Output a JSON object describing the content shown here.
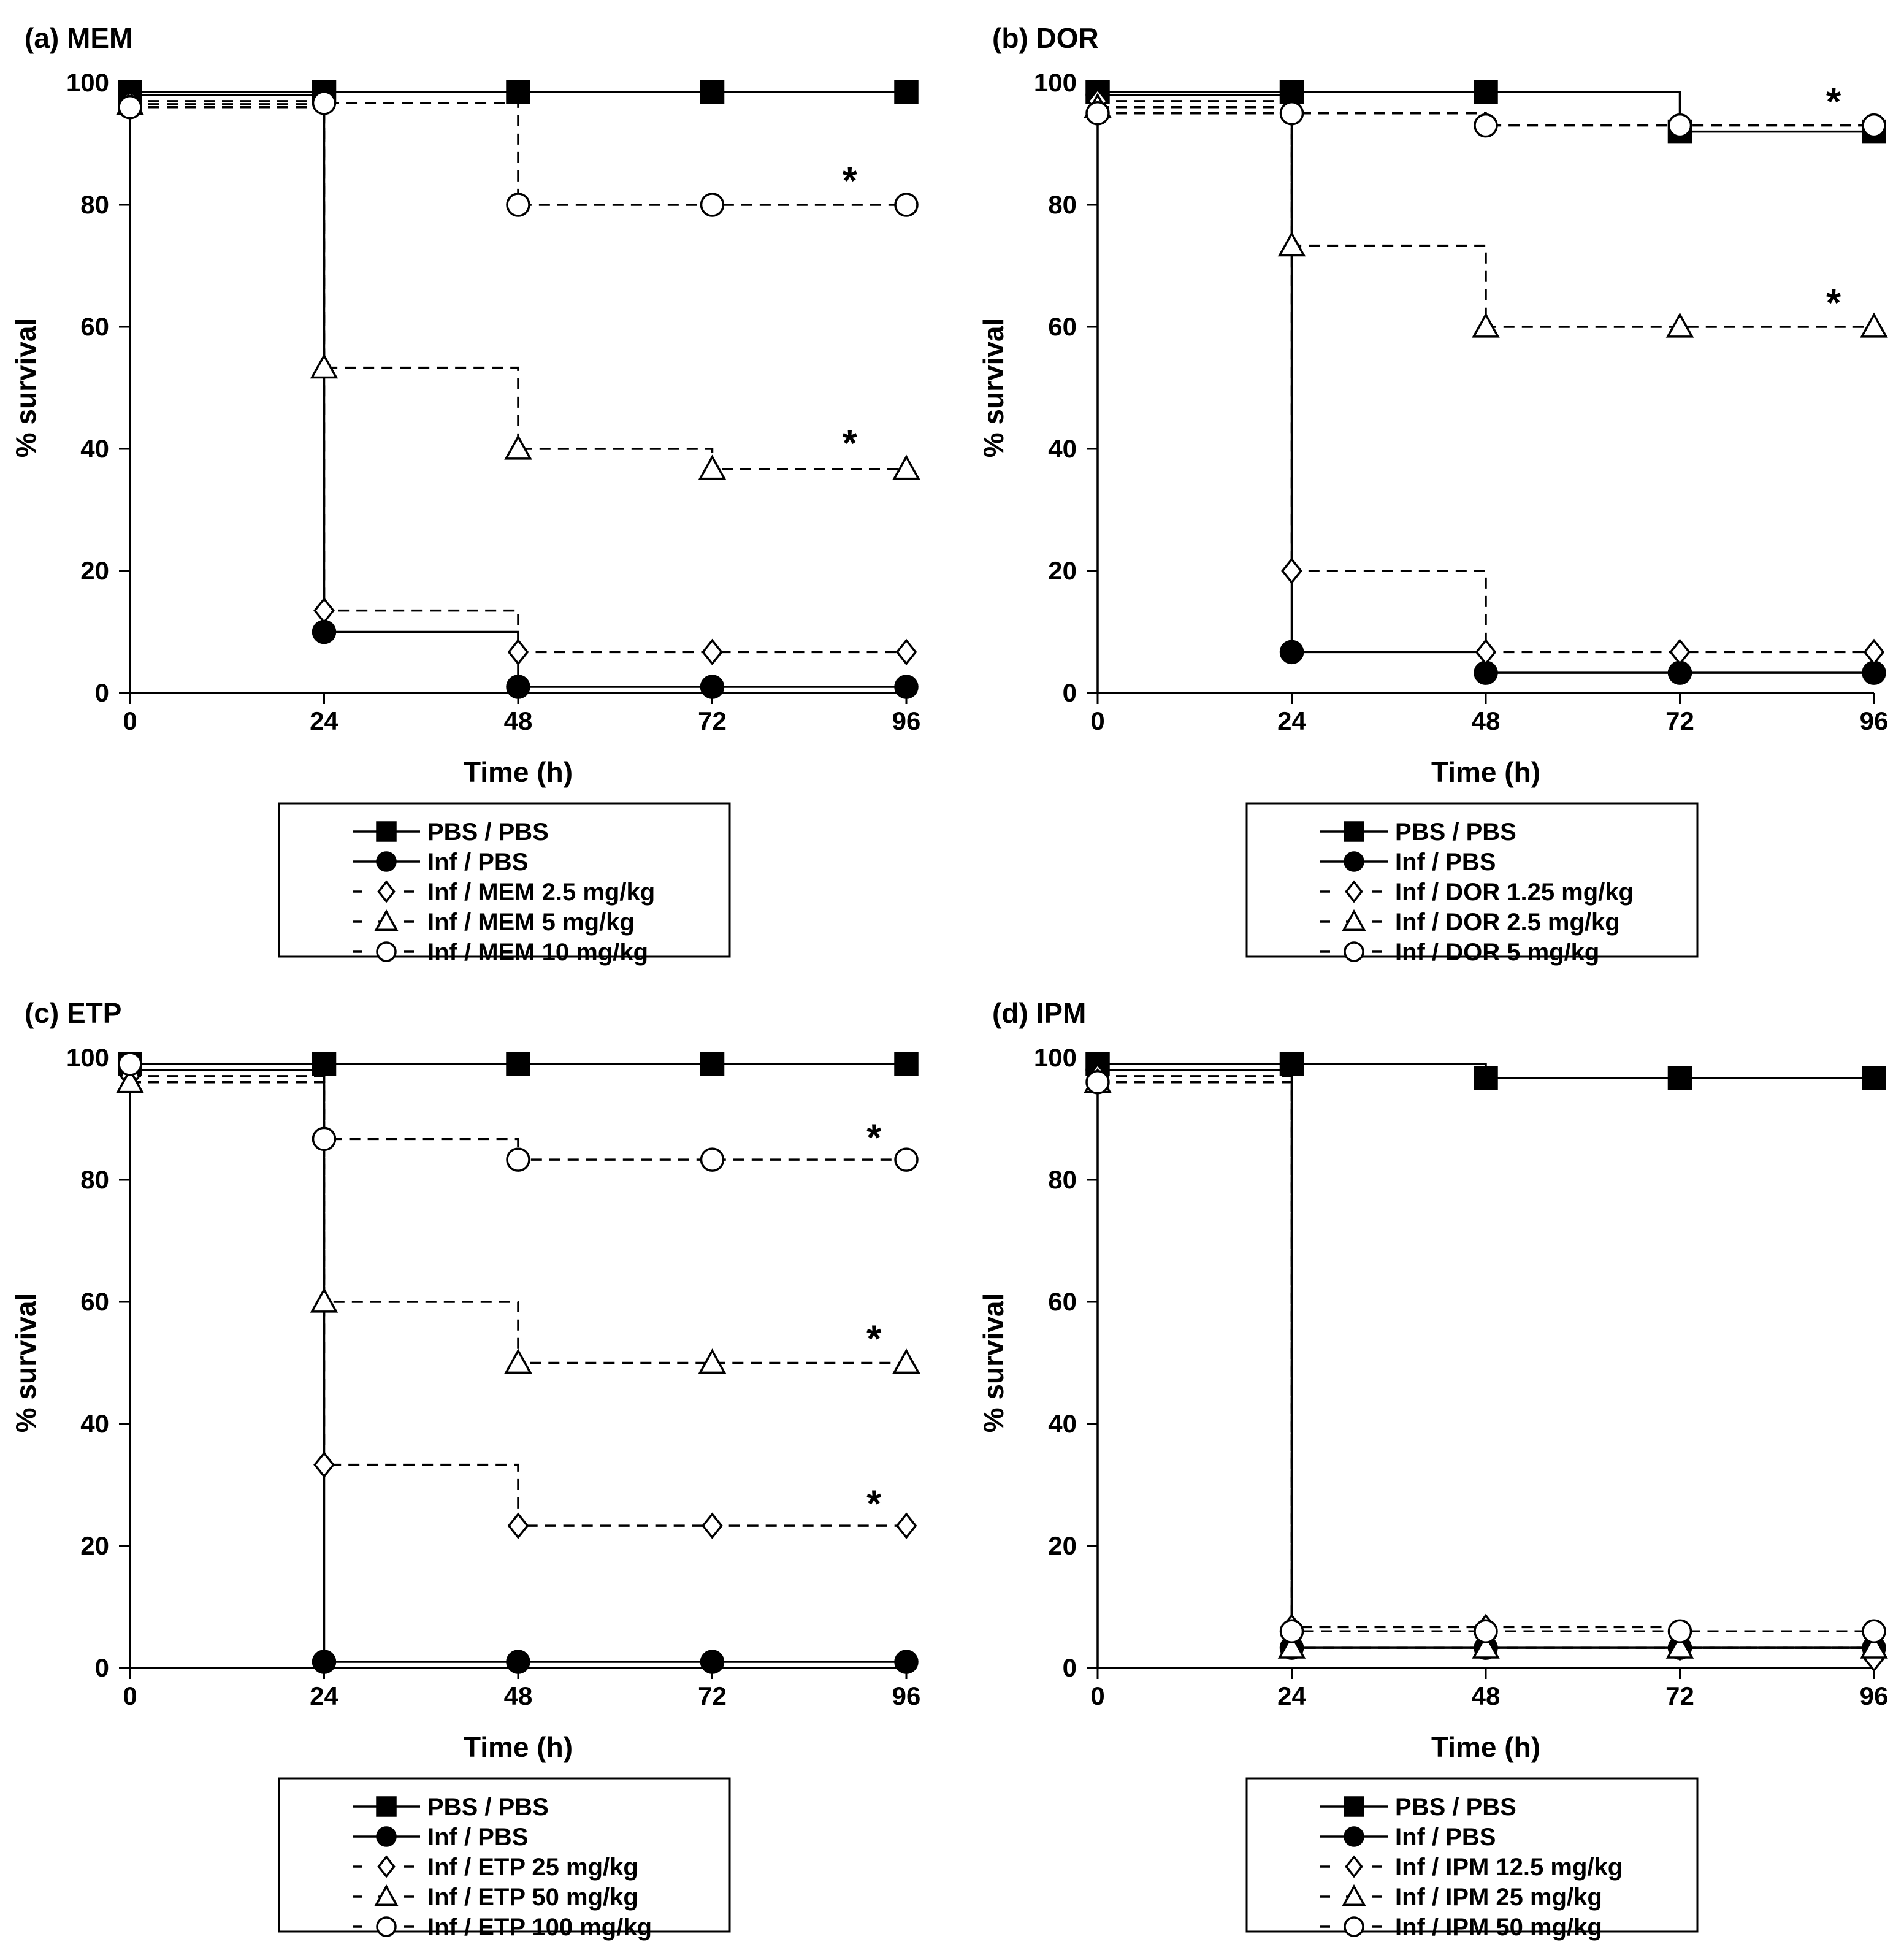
{
  "colors": {
    "ink": "#000000",
    "marker_fill_open": "#ffffff",
    "background": "#ffffff"
  },
  "chart_data": [
    {
      "type": "line",
      "step": true,
      "title": "(a) MEM",
      "xlabel": "Time (h)",
      "ylabel": "% survival",
      "x": [
        0,
        24,
        48,
        72,
        96
      ],
      "x_ticks": [
        "0",
        "24",
        "48",
        "72",
        "96"
      ],
      "y_ticks": [
        "0",
        "20",
        "40",
        "60",
        "80",
        "100"
      ],
      "xlim": [
        0,
        96
      ],
      "ylim": [
        0,
        100
      ],
      "legend_position": "below",
      "series": [
        {
          "name": "PBS / PBS",
          "marker": "square-filled",
          "line": "solid",
          "values": [
            98.5,
            98.5,
            98.5,
            98.5,
            98.5
          ]
        },
        {
          "name": "Inf / PBS",
          "marker": "circle-filled",
          "line": "solid",
          "values": [
            98,
            10,
            1,
            1,
            1
          ]
        },
        {
          "name": "Inf / MEM 2.5 mg/kg",
          "marker": "diamond-open",
          "line": "dashed",
          "values": [
            97,
            13.5,
            6.7,
            6.7,
            6.7
          ]
        },
        {
          "name": "Inf / MEM 5 mg/kg",
          "marker": "triangle-open",
          "line": "dashed",
          "values": [
            96.5,
            53.3,
            40,
            36.7,
            36.7
          ]
        },
        {
          "name": "Inf / MEM 10 mg/kg",
          "marker": "circle-open",
          "line": "dashed",
          "values": [
            96,
            96.7,
            80,
            80,
            80
          ]
        }
      ],
      "annotations": [
        {
          "text": "*",
          "x": 89,
          "y": 84
        },
        {
          "text": "*",
          "x": 89,
          "y": 41
        }
      ]
    },
    {
      "type": "line",
      "step": true,
      "title": "(b) DOR",
      "xlabel": "Time (h)",
      "ylabel": "% survival",
      "x": [
        0,
        24,
        48,
        72,
        96
      ],
      "x_ticks": [
        "0",
        "24",
        "48",
        "72",
        "96"
      ],
      "y_ticks": [
        "0",
        "20",
        "40",
        "60",
        "80",
        "100"
      ],
      "xlim": [
        0,
        96
      ],
      "ylim": [
        0,
        100
      ],
      "legend_position": "below",
      "series": [
        {
          "name": "PBS / PBS",
          "marker": "square-filled",
          "line": "solid",
          "values": [
            98.5,
            98.5,
            98.5,
            92,
            92
          ]
        },
        {
          "name": "Inf / PBS",
          "marker": "circle-filled",
          "line": "solid",
          "values": [
            98,
            6.7,
            3.3,
            3.3,
            3.3
          ]
        },
        {
          "name": "Inf / DOR 1.25 mg/kg",
          "marker": "diamond-open",
          "line": "dashed",
          "values": [
            97,
            20,
            6.7,
            6.7,
            6.7
          ]
        },
        {
          "name": "Inf / DOR 2.5 mg/kg",
          "marker": "triangle-open",
          "line": "dashed",
          "values": [
            96,
            73.3,
            60,
            60,
            60
          ]
        },
        {
          "name": "Inf / DOR 5 mg/kg",
          "marker": "circle-open",
          "line": "dashed",
          "values": [
            95,
            95,
            93,
            93,
            93
          ]
        }
      ],
      "annotations": [
        {
          "text": "*",
          "x": 91,
          "y": 97
        },
        {
          "text": "*",
          "x": 91,
          "y": 64
        }
      ]
    },
    {
      "type": "line",
      "step": true,
      "title": "(c) ETP",
      "xlabel": "Time (h)",
      "ylabel": "% survival",
      "x": [
        0,
        24,
        48,
        72,
        96
      ],
      "x_ticks": [
        "0",
        "24",
        "48",
        "72",
        "96"
      ],
      "y_ticks": [
        "0",
        "20",
        "40",
        "60",
        "80",
        "100"
      ],
      "xlim": [
        0,
        96
      ],
      "ylim": [
        0,
        100
      ],
      "legend_position": "below",
      "series": [
        {
          "name": "PBS / PBS",
          "marker": "square-filled",
          "line": "solid",
          "values": [
            99,
            99,
            99,
            99,
            99
          ]
        },
        {
          "name": "Inf / PBS",
          "marker": "circle-filled",
          "line": "solid",
          "values": [
            98,
            1,
            1,
            1,
            1
          ]
        },
        {
          "name": "Inf / ETP 25 mg/kg",
          "marker": "diamond-open",
          "line": "dashed",
          "values": [
            97,
            33.3,
            23.3,
            23.3,
            23.3
          ]
        },
        {
          "name": "Inf / ETP 50 mg/kg",
          "marker": "triangle-open",
          "line": "dashed",
          "values": [
            96,
            60,
            50,
            50,
            50
          ]
        },
        {
          "name": "Inf / ETP 100 mg/kg",
          "marker": "circle-open",
          "line": "dashed",
          "values": [
            99,
            86.7,
            83.3,
            83.3,
            83.3
          ]
        }
      ],
      "annotations": [
        {
          "text": "*",
          "x": 92,
          "y": 87
        },
        {
          "text": "*",
          "x": 92,
          "y": 54
        },
        {
          "text": "*",
          "x": 92,
          "y": 27
        }
      ]
    },
    {
      "type": "line",
      "step": true,
      "title": "(d) IPM",
      "xlabel": "Time (h)",
      "ylabel": "% survival",
      "x": [
        0,
        24,
        48,
        72,
        96
      ],
      "x_ticks": [
        "0",
        "24",
        "48",
        "72",
        "96"
      ],
      "y_ticks": [
        "0",
        "20",
        "40",
        "60",
        "80",
        "100"
      ],
      "xlim": [
        0,
        96
      ],
      "ylim": [
        0,
        100
      ],
      "legend_position": "below",
      "series": [
        {
          "name": "PBS / PBS",
          "marker": "square-filled",
          "line": "solid",
          "values": [
            99,
            99,
            96.7,
            96.7,
            96.7
          ]
        },
        {
          "name": "Inf / PBS",
          "marker": "circle-filled",
          "line": "solid",
          "values": [
            98,
            3.3,
            3.3,
            3.3,
            3.3
          ]
        },
        {
          "name": "Inf / IPM 12.5 mg/kg",
          "marker": "diamond-open",
          "line": "dashed",
          "values": [
            97,
            6.7,
            6.7,
            3.3,
            1.5
          ]
        },
        {
          "name": "Inf / IPM 25 mg/kg",
          "marker": "triangle-open",
          "line": "dashed",
          "values": [
            96,
            3.3,
            3.3,
            3.3,
            3.3
          ]
        },
        {
          "name": "Inf / IPM 50 mg/kg",
          "marker": "circle-open",
          "line": "dashed",
          "values": [
            96,
            6,
            6,
            6,
            6
          ]
        }
      ],
      "annotations": []
    }
  ]
}
